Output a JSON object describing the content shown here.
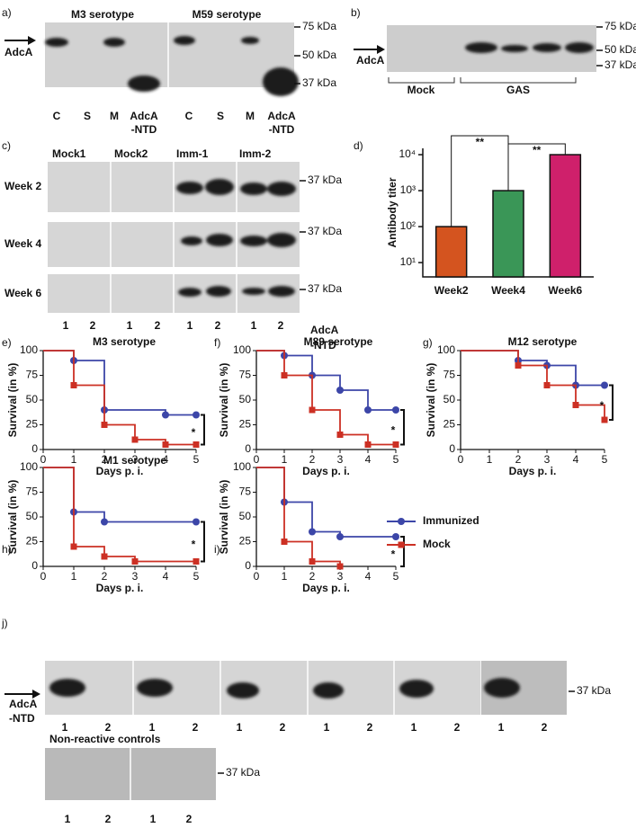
{
  "a": {
    "label": "a)",
    "arrow_label": "AdcA",
    "titles": [
      "M3 serotype",
      "M59 serotype"
    ],
    "markers": [
      "75 kDa",
      "50 kDa",
      "37 kDa"
    ],
    "lanes": [
      [
        "C"
      ],
      [
        "S"
      ],
      [
        "M"
      ],
      [
        "AdcA",
        "-NTD"
      ],
      [
        "C"
      ],
      [
        "S"
      ],
      [
        "M"
      ],
      [
        "AdcA",
        "-NTD"
      ]
    ]
  },
  "b": {
    "label": "b)",
    "arrow_label": "AdcA",
    "groups": [
      "Mock",
      "GAS"
    ],
    "markers": [
      "75 kDa",
      "50 kDa",
      "37 kDa"
    ]
  },
  "c": {
    "label": "c)",
    "columns": [
      "Mock1",
      "Mock2",
      "Imm-1",
      "Imm-2"
    ],
    "rows": [
      "Week 2",
      "Week 4",
      "Week 6"
    ],
    "marker": "37 kDa",
    "lanes": [
      "1",
      "2",
      "1",
      "2",
      "1",
      "2",
      "1",
      "2"
    ],
    "caption": [
      "AdcA",
      "-NTD"
    ]
  },
  "j": {
    "label": "j)",
    "arrow_label": [
      "AdcA",
      "-NTD"
    ],
    "marker": "37 kDa",
    "lanes": [
      "1",
      "2",
      "1",
      "2",
      "1",
      "2",
      "1",
      "2",
      "1",
      "2",
      "1",
      "2"
    ],
    "controls_title": "Non-reactive controls",
    "control_lanes": [
      "1",
      "2",
      "1",
      "2"
    ],
    "control_marker": "37 kDa"
  },
  "chart_data": [
    {
      "type": "bar",
      "panel_label": "d)",
      "y_label": "Antibody titer",
      "log_y": true,
      "categories": [
        "Week2",
        "Week4",
        "Week6"
      ],
      "values": [
        100,
        1000,
        10000
      ],
      "colors": [
        "#d4541f",
        "#3a9657",
        "#cf206b"
      ],
      "ylim": [
        4,
        15000
      ],
      "yticks": [
        {
          "value": 10,
          "label": "10¹"
        },
        {
          "value": 100,
          "label": "10²"
        },
        {
          "value": 1000,
          "label": "10³"
        },
        {
          "value": 10000,
          "label": "10⁴"
        }
      ],
      "annotations": [
        "**",
        "**"
      ]
    },
    {
      "type": "line",
      "step": true,
      "panel_label": "e)",
      "title": "M3 serotype",
      "x_label": "Days p. i.",
      "y_label": "Survival (in %)",
      "xlim": [
        0,
        5
      ],
      "xticks": [
        0,
        1,
        2,
        3,
        4,
        5
      ],
      "ylim": [
        0,
        100
      ],
      "yticks": [
        0,
        25,
        50,
        75,
        100
      ],
      "annotations": [
        "*"
      ],
      "series": [
        {
          "name": "Immunized",
          "color": "#3c46a8",
          "x": [
            0,
            1,
            2,
            4,
            5
          ],
          "values": [
            100,
            90,
            40,
            35,
            35
          ]
        },
        {
          "name": "Mock",
          "color": "#cc3024",
          "x": [
            0,
            1,
            2,
            3,
            4,
            5
          ],
          "values": [
            100,
            65,
            25,
            10,
            5,
            5
          ]
        }
      ]
    },
    {
      "type": "line",
      "step": true,
      "panel_label": "f)",
      "title": "M89 serotype",
      "x_label": "Days p. i.",
      "y_label": "Survival (in %)",
      "xlim": [
        0,
        5
      ],
      "xticks": [
        0,
        1,
        2,
        3,
        4,
        5
      ],
      "ylim": [
        0,
        100
      ],
      "yticks": [
        0,
        25,
        50,
        75,
        100
      ],
      "annotations": [
        "*"
      ],
      "series": [
        {
          "name": "Immunized",
          "color": "#3c46a8",
          "x": [
            0,
            1,
            2,
            3,
            4,
            5
          ],
          "values": [
            100,
            95,
            75,
            60,
            40,
            40
          ]
        },
        {
          "name": "Mock",
          "color": "#cc3024",
          "x": [
            0,
            1,
            2,
            3,
            4,
            5
          ],
          "values": [
            100,
            75,
            40,
            15,
            5,
            5
          ]
        }
      ]
    },
    {
      "type": "line",
      "step": true,
      "panel_label": "g)",
      "title": "M12 serotype",
      "x_label": "Days p. i.",
      "y_label": "Survival (in %)",
      "xlim": [
        0,
        5
      ],
      "xticks": [
        0,
        1,
        2,
        3,
        4,
        5
      ],
      "ylim": [
        0,
        100
      ],
      "yticks": [
        0,
        25,
        50,
        75,
        100
      ],
      "annotations": [
        "*"
      ],
      "series": [
        {
          "name": "Immunized",
          "color": "#3c46a8",
          "x": [
            0,
            2,
            3,
            4,
            5
          ],
          "values": [
            100,
            90,
            85,
            65,
            65
          ]
        },
        {
          "name": "Mock",
          "color": "#cc3024",
          "x": [
            0,
            2,
            3,
            4,
            5
          ],
          "values": [
            100,
            85,
            65,
            45,
            30
          ]
        }
      ]
    },
    {
      "type": "line",
      "step": true,
      "panel_label": "h)",
      "title": "M1 serotype",
      "x_label": "Days p. i.",
      "y_label": "Survival (in %)",
      "xlim": [
        0,
        5
      ],
      "xticks": [
        0,
        1,
        2,
        3,
        4,
        5
      ],
      "ylim": [
        0,
        100
      ],
      "yticks": [
        0,
        25,
        50,
        75,
        100
      ],
      "annotations": [
        "*"
      ],
      "series": [
        {
          "name": "Immunized",
          "color": "#3c46a8",
          "x": [
            0,
            1,
            2,
            5
          ],
          "values": [
            100,
            55,
            45,
            45
          ]
        },
        {
          "name": "Mock",
          "color": "#cc3024",
          "x": [
            0,
            1,
            2,
            3,
            5
          ],
          "values": [
            100,
            20,
            10,
            5,
            5
          ]
        }
      ]
    },
    {
      "type": "line",
      "step": true,
      "panel_label": "i)",
      "x_label": "Days p. i.",
      "y_label": "Survival (in %)",
      "legend": "right",
      "xlim": [
        0,
        5
      ],
      "xticks": [
        0,
        1,
        2,
        3,
        4,
        5
      ],
      "ylim": [
        0,
        100
      ],
      "yticks": [
        0,
        25,
        50,
        75,
        100
      ],
      "annotations": [
        "*"
      ],
      "series": [
        {
          "name": "Immunized",
          "color": "#3c46a8",
          "x": [
            0,
            1,
            2,
            3,
            5
          ],
          "values": [
            100,
            65,
            35,
            30,
            30
          ]
        },
        {
          "name": "Mock",
          "color": "#cc3024",
          "x": [
            0,
            1,
            2,
            3
          ],
          "values": [
            100,
            25,
            5,
            0
          ]
        }
      ]
    }
  ]
}
